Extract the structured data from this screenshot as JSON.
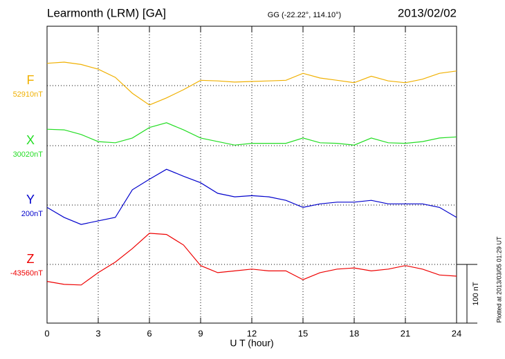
{
  "chart_data": {
    "type": "line",
    "title": "Learmonth (LRM)  [GA]",
    "subtitle": "GG (-22.22°, 114.10°)",
    "date": "2013/02/02",
    "x_label": "U T (hour)",
    "footnote": "Plotted at 2013/03/05 01:29 UT",
    "scale_bar": {
      "value": 100,
      "label": "100 nT"
    },
    "grid": true,
    "x": [
      0,
      1,
      2,
      3,
      4,
      5,
      6,
      7,
      8,
      9,
      10,
      11,
      12,
      13,
      14,
      15,
      16,
      17,
      18,
      19,
      20,
      21,
      22,
      23,
      24
    ],
    "xlim": [
      0,
      24
    ],
    "xticks": [
      0,
      3,
      6,
      9,
      12,
      15,
      18,
      21,
      24
    ],
    "series": [
      {
        "name": "F",
        "color": "#f0b000",
        "baseline": {
          "value": 52910,
          "label": "52910nT"
        },
        "values": [
          52948,
          52950,
          52946,
          52938,
          52924,
          52897,
          52877,
          52889,
          52903,
          52919,
          52918,
          52916,
          52917,
          52918,
          52919,
          52931,
          52923,
          52919,
          52915,
          52926,
          52918,
          52915,
          52921,
          52931,
          52935
        ]
      },
      {
        "name": "X",
        "color": "#22dd22",
        "baseline": {
          "value": 30020,
          "label": "30020nT"
        },
        "values": [
          30048,
          30047,
          30039,
          30027,
          30025,
          30033,
          30051,
          30059,
          30047,
          30033,
          30027,
          30021,
          30024,
          30024,
          30024,
          30033,
          30025,
          30024,
          30021,
          30033,
          30025,
          30024,
          30027,
          30033,
          30035
        ]
      },
      {
        "name": "Y",
        "color": "#0000cc",
        "baseline": {
          "value": 200,
          "label": "200nT"
        },
        "values": [
          196,
          179,
          167,
          173,
          179,
          226,
          244,
          261,
          249,
          238,
          220,
          214,
          216,
          214,
          208,
          196,
          202,
          205,
          205,
          208,
          202,
          202,
          202,
          196,
          179
        ]
      },
      {
        "name": "Z",
        "color": "#ee0000",
        "baseline": {
          "value": -43560,
          "label": "-43560nT"
        },
        "values": [
          -43589,
          -43594,
          -43595,
          -43574,
          -43556,
          -43533,
          -43507,
          -43509,
          -43527,
          -43562,
          -43574,
          -43571,
          -43568,
          -43571,
          -43571,
          -43586,
          -43574,
          -43568,
          -43566,
          -43571,
          -43568,
          -43562,
          -43568,
          -43578,
          -43580
        ]
      }
    ]
  }
}
